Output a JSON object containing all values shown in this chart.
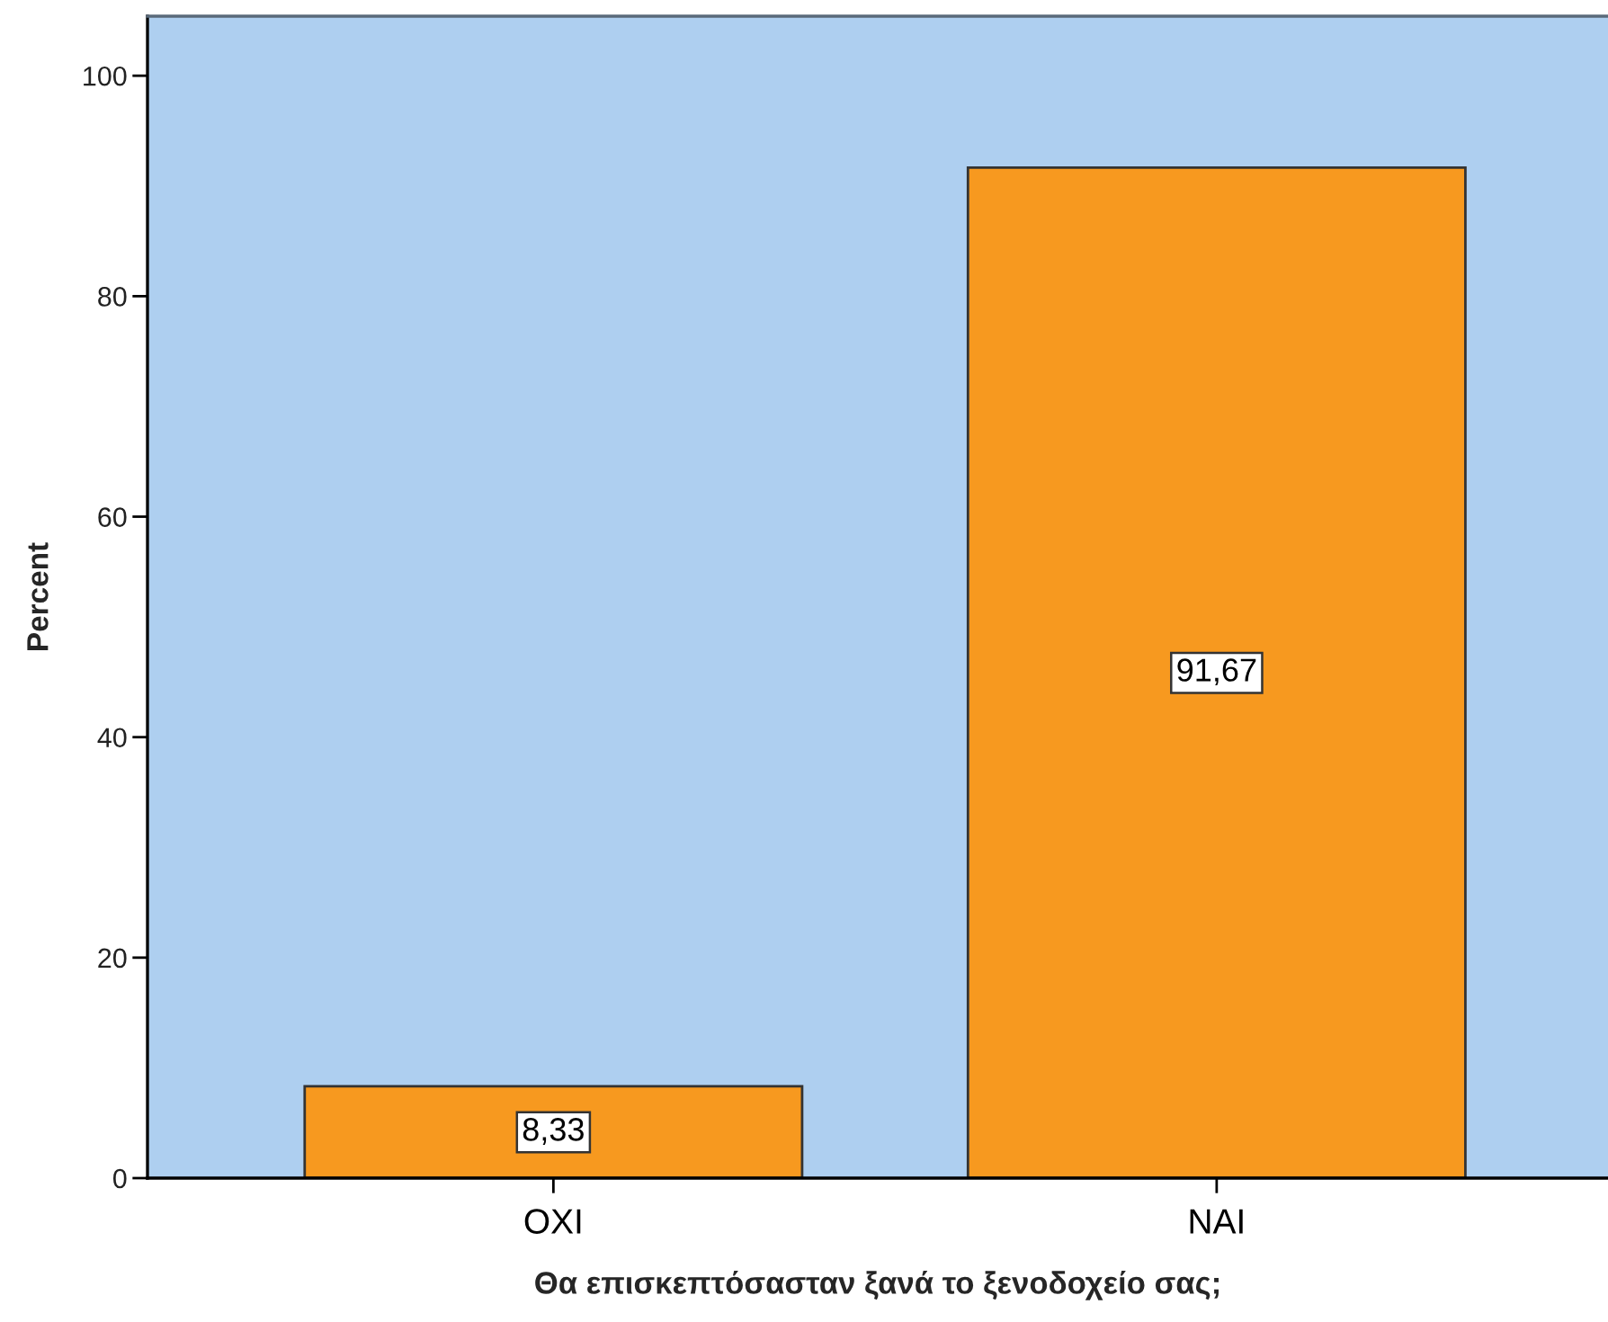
{
  "chart_data": {
    "type": "bar",
    "categories": [
      "ΟΧΙ",
      "ΝΑΙ"
    ],
    "values": [
      8.33,
      91.67
    ],
    "value_labels": [
      "8,33",
      "91,67"
    ],
    "color": "#f7991f",
    "xlabel": "Θα επισκεπτόσασταν ξανά το ξενοδοχείο σας;",
    "ylabel": "Percent",
    "ylim": [
      0,
      105.4
    ],
    "yticks": [
      0,
      20,
      40,
      60,
      80,
      100
    ]
  }
}
